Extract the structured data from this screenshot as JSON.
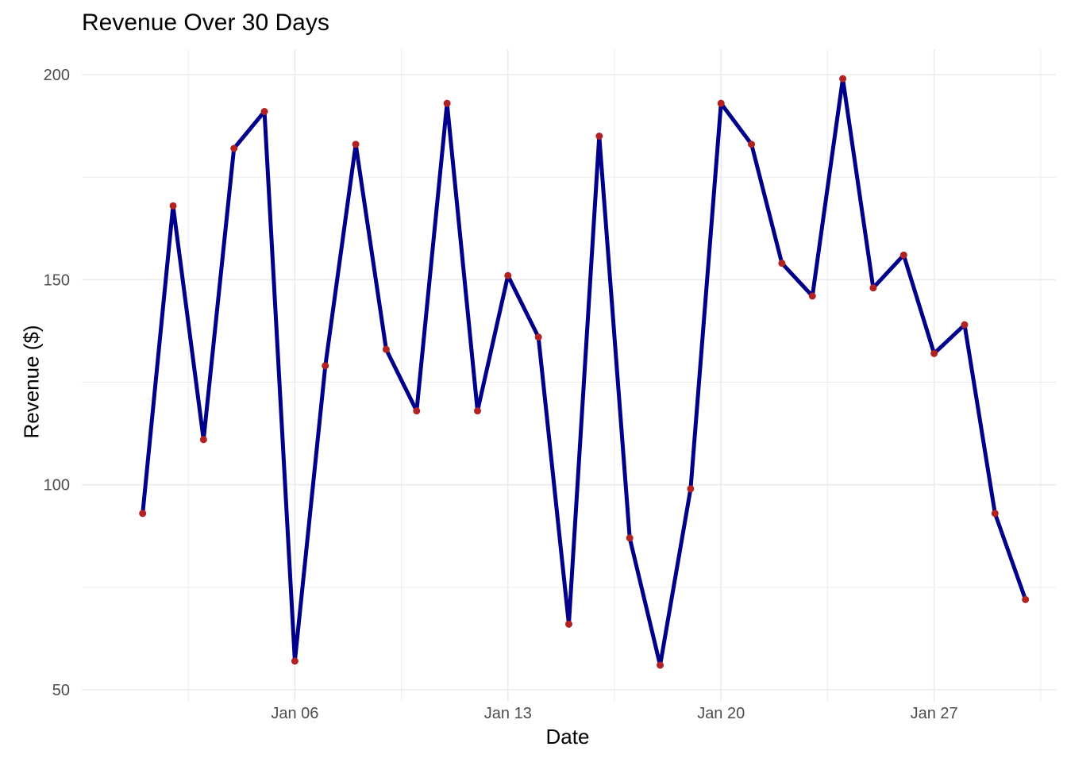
{
  "chart_data": {
    "type": "line",
    "title": "Revenue Over 30 Days",
    "xlabel": "Date",
    "ylabel": "Revenue ($)",
    "x": [
      "2024-01-01",
      "2024-01-02",
      "2024-01-03",
      "2024-01-04",
      "2024-01-05",
      "2024-01-06",
      "2024-01-07",
      "2024-01-08",
      "2024-01-09",
      "2024-01-10",
      "2024-01-11",
      "2024-01-12",
      "2024-01-13",
      "2024-01-14",
      "2024-01-15",
      "2024-01-16",
      "2024-01-17",
      "2024-01-18",
      "2024-01-19",
      "2024-01-20",
      "2024-01-21",
      "2024-01-22",
      "2024-01-23",
      "2024-01-24",
      "2024-01-25",
      "2024-01-26",
      "2024-01-27",
      "2024-01-28",
      "2024-01-29",
      "2024-01-30"
    ],
    "series": [
      {
        "values": [
          93,
          168,
          111,
          182,
          191,
          57,
          129,
          183,
          133,
          118,
          193,
          118,
          151,
          136,
          66,
          185,
          87,
          56,
          99,
          193,
          183,
          154,
          146,
          199,
          148,
          156,
          132,
          139,
          93,
          72
        ],
        "line_color": "#00008b",
        "point_color": "#b22222"
      }
    ],
    "x_ticks": [
      {
        "date": "2024-01-06",
        "label": "Jan 06"
      },
      {
        "date": "2024-01-13",
        "label": "Jan 13"
      },
      {
        "date": "2024-01-20",
        "label": "Jan 20"
      },
      {
        "date": "2024-01-27",
        "label": "Jan 27"
      }
    ],
    "xlim": [
      "2023-12-30",
      "2024-01-31"
    ],
    "y_ticks": [
      50,
      100,
      150,
      200
    ],
    "ylim": [
      50,
      200
    ],
    "grid": true,
    "legend": "none",
    "colors": {
      "grid": "#ebebeb",
      "tick_text": "#4d4d4d",
      "background": "#ffffff"
    }
  }
}
